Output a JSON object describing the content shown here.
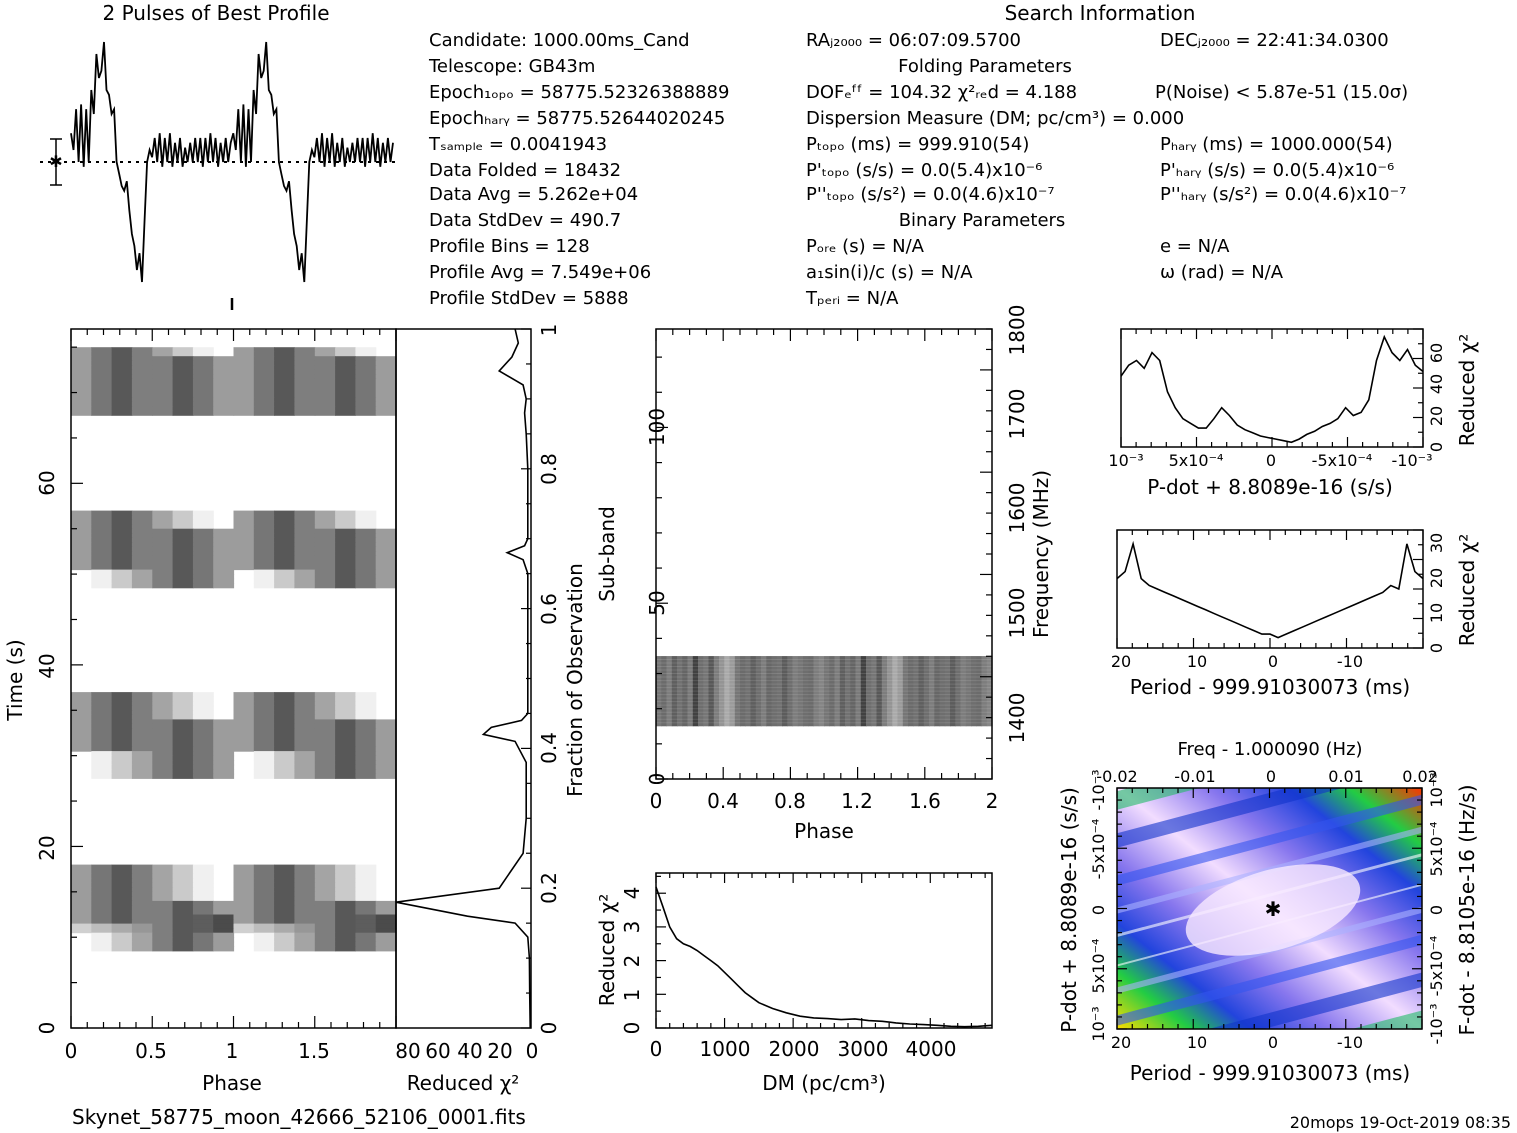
{
  "title_profile": "2 Pulses of Best Profile",
  "title_search": "Search Information",
  "file_name": "Skynet_58775_moon_42666_52106_0001.fits",
  "footer": "20mops 19-Oct-2019 08:35",
  "info_left": [
    "Candidate:  1000.00ms_Cand",
    "Telescope:  GB43m",
    "Epoch₁ₒₚₒ = 58775.52326388889",
    "Epochₕₐᵣᵧ = 58775.52644020245",
    "Tₛₐₘₚₗₑ    =  0.0041943",
    "Data Folded   =  18432",
    "Data Avg      =  5.262e+04",
    "Data StdDev   =  490.7",
    "Profile Bins  =  128",
    "Profile Avg   =  7.549e+06",
    "Profile StdDev =  5888"
  ],
  "info_mid": [
    "RAⱼ₂₀₀₀ = 06:07:09.5700",
    "Folding Parameters",
    "DOFₑᶠᶠ = 104.32  χ²ᵣₑd = 4.188",
    "Dispersion Measure (DM; pc/cm³) = 0.000",
    "Pₜₒₚₒ (ms) =  999.910(54)",
    "P'ₜₒₚₒ (s/s) = 0.0(5.4)x10⁻⁶",
    "P''ₜₒₚₒ (s/s²) = 0.0(4.6)x10⁻⁷",
    "Binary Parameters",
    "Pₒᵣₑ (s) = N/A",
    "a₁sin(i)/c (s) = N/A",
    "Tₚₑᵣᵢ = N/A"
  ],
  "info_right": [
    "DECⱼ₂₀₀₀ = 22:41:34.0300",
    "P(Noise) < 5.87e-51  (15.0σ)",
    "Pₕₐᵣᵧ (ms) =  1000.000(54)",
    "P'ₕₐᵣᵧ (s/s) = 0.0(5.4)x10⁻⁶",
    "P''ₕₐᵣᵧ (s/s²) = 0.0(4.6)x10⁻⁷",
    "e = N/A",
    "ω (rad) = N/A"
  ],
  "chart_data": [
    {
      "type": "line",
      "name": "profile",
      "title": "2 Pulses of Best Profile",
      "x": "phase 0-2",
      "values": [
        0.62,
        0.55,
        0.72,
        0.5,
        0.74,
        0.48,
        0.72,
        0.5,
        0.8,
        0.7,
        0.95,
        0.85,
        0.88,
        1.0,
        0.8,
        0.78,
        0.7,
        0.72,
        0.5,
        0.45,
        0.4,
        0.38,
        0.42,
        0.3,
        0.2,
        0.15,
        0.05,
        0.12,
        0.0,
        0.25,
        0.5,
        0.55,
        0.52,
        0.6,
        0.5,
        0.62,
        0.48,
        0.6,
        0.5,
        0.62,
        0.48,
        0.58,
        0.5,
        0.6,
        0.48,
        0.56,
        0.5,
        0.58,
        0.5,
        0.6,
        0.5,
        0.6,
        0.48,
        0.6,
        0.5,
        0.62,
        0.5,
        0.6,
        0.48,
        0.58,
        0.5,
        0.6,
        0.5,
        0.58
      ]
    },
    {
      "type": "heatmap",
      "name": "time-phase",
      "xlabel": "Phase",
      "ylabel": "Time (s)",
      "x_ticks": [
        "0",
        "0.5",
        "1",
        "1.5"
      ],
      "y_ticks": [
        "0",
        "20",
        "40",
        "60"
      ],
      "xlim": [
        0,
        2
      ],
      "ylim": [
        0,
        77
      ]
    },
    {
      "type": "line",
      "name": "reduced-chi2-vs-fraction",
      "xlabel": "Reduced χ²",
      "ylabel": "Fraction of Observation",
      "x_ticks": [
        "80",
        "60",
        "40",
        "20",
        "0"
      ],
      "y_ticks": [
        "0",
        "0.2",
        "0.4",
        "0.6",
        "0.8",
        "1"
      ],
      "x": [
        0.0,
        0.05,
        0.1,
        0.13,
        0.15,
        0.16,
        0.18,
        0.2,
        0.25,
        0.3,
        0.38,
        0.41,
        0.42,
        0.43,
        0.44,
        0.45,
        0.5,
        0.55,
        0.6,
        0.65,
        0.67,
        0.68,
        0.69,
        0.7,
        0.75,
        0.8,
        0.85,
        0.88,
        0.9,
        0.92,
        0.94,
        0.96,
        0.98,
        1.0
      ],
      "y": [
        0.5,
        0.8,
        1,
        2,
        10,
        40,
        85,
        20,
        5,
        3,
        3,
        10,
        30,
        25,
        6,
        2,
        2,
        2,
        2,
        2,
        5,
        15,
        4,
        2,
        2,
        2,
        3,
        4,
        3,
        5,
        20,
        12,
        8,
        10
      ],
      "xlim": [
        0,
        1
      ],
      "ylim": [
        85,
        0
      ]
    },
    {
      "type": "heatmap",
      "name": "subband-phase",
      "xlabel": "Phase",
      "ylabel": "Sub-band",
      "y2label": "Frequency (MHz)",
      "x_ticks": [
        "0",
        "0.4",
        "0.8",
        "1.2",
        "1.6",
        "2"
      ],
      "y_ticks": [
        "0",
        "50",
        "100"
      ],
      "y2_ticks": [
        "1400",
        "1500",
        "1600",
        "1700",
        "1800"
      ],
      "xlim": [
        0,
        2
      ],
      "ylim": [
        0,
        128
      ],
      "band": [
        15,
        35
      ]
    },
    {
      "type": "line",
      "name": "dm-curve",
      "xlabel": "DM (pc/cm³)",
      "ylabel": "Reduced χ²",
      "x_ticks": [
        "0",
        "1000",
        "2000",
        "3000",
        "4000"
      ],
      "y_ticks": [
        "0",
        "1",
        "2",
        "3",
        "4"
      ],
      "x": [
        0,
        100,
        200,
        300,
        400,
        500,
        600,
        700,
        800,
        900,
        1000,
        1100,
        1200,
        1300,
        1400,
        1500,
        1700,
        1900,
        2100,
        2300,
        2500,
        2700,
        2900,
        3100,
        3300,
        3500,
        3700,
        3900,
        4100,
        4300,
        4500,
        4700,
        4900
      ],
      "y": [
        4.188,
        3.6,
        3.0,
        2.65,
        2.5,
        2.42,
        2.3,
        2.15,
        2.0,
        1.85,
        1.65,
        1.45,
        1.25,
        1.05,
        0.9,
        0.75,
        0.58,
        0.45,
        0.35,
        0.3,
        0.28,
        0.25,
        0.27,
        0.22,
        0.2,
        0.15,
        0.12,
        0.1,
        0.08,
        0.05,
        0.04,
        0.05,
        0.08
      ],
      "xlim": [
        0,
        4900
      ],
      "ylim": [
        0,
        4.6
      ]
    },
    {
      "type": "line",
      "name": "pdot-curve",
      "xlabel": "P-dot + 8.8089e-16 (s/s)",
      "ylabel": "Reduced χ²",
      "x_ticks": [
        "10⁻³",
        "5x10⁻⁴",
        "0",
        "-5x10⁻⁴",
        "-10⁻³"
      ],
      "y_ticks": [
        "0",
        "20",
        "40",
        "60"
      ],
      "values": [
        45,
        52,
        55,
        50,
        60,
        55,
        35,
        25,
        18,
        15,
        12,
        12,
        18,
        25,
        20,
        14,
        11,
        9,
        7,
        6,
        5,
        4,
        3,
        5,
        8,
        10,
        13,
        15,
        18,
        25,
        20,
        22,
        30,
        55,
        70,
        60,
        55,
        62,
        52,
        48
      ],
      "ylim": [
        0,
        75
      ]
    },
    {
      "type": "line",
      "name": "period-curve",
      "xlabel": "Period - 999.91030073 (ms)",
      "ylabel": "Reduced χ²",
      "x_ticks": [
        "20",
        "10",
        "0",
        "-10"
      ],
      "y_ticks": [
        "0",
        "10",
        "20",
        "30"
      ],
      "values": [
        20,
        22,
        30,
        20,
        18,
        17,
        16,
        15,
        14,
        13,
        12,
        11,
        10,
        9,
        8,
        7,
        6,
        5,
        4,
        4,
        3,
        4,
        5,
        6,
        7,
        8,
        9,
        10,
        11,
        12,
        13,
        14,
        15,
        16,
        18,
        17,
        30,
        22,
        20
      ],
      "ylim": [
        0,
        34
      ]
    },
    {
      "type": "heatmap",
      "name": "p-pdot-plane",
      "xlabel": "Period - 999.91030073 (ms)",
      "x2label": "Freq - 1.000090 (Hz)",
      "ylabel": "P-dot + 8.8089e-16 (s/s)",
      "y2label": "F-dot - 8.8105e-16 (Hz/s)",
      "x_ticks": [
        "20",
        "10",
        "0",
        "-10"
      ],
      "x2_ticks": [
        "-0.02",
        "-0.01",
        "0",
        "0.01",
        "0.02"
      ],
      "y_ticks": [
        "10⁻³",
        "5x10⁻⁴",
        "0",
        "-5x10⁻⁴",
        "-10⁻³"
      ],
      "y2_ticks": [
        "-10⁻³",
        "-5x10⁻⁴",
        "0",
        "5x10⁻⁴",
        "10⁻³"
      ],
      "best": [
        0,
        0
      ]
    }
  ]
}
